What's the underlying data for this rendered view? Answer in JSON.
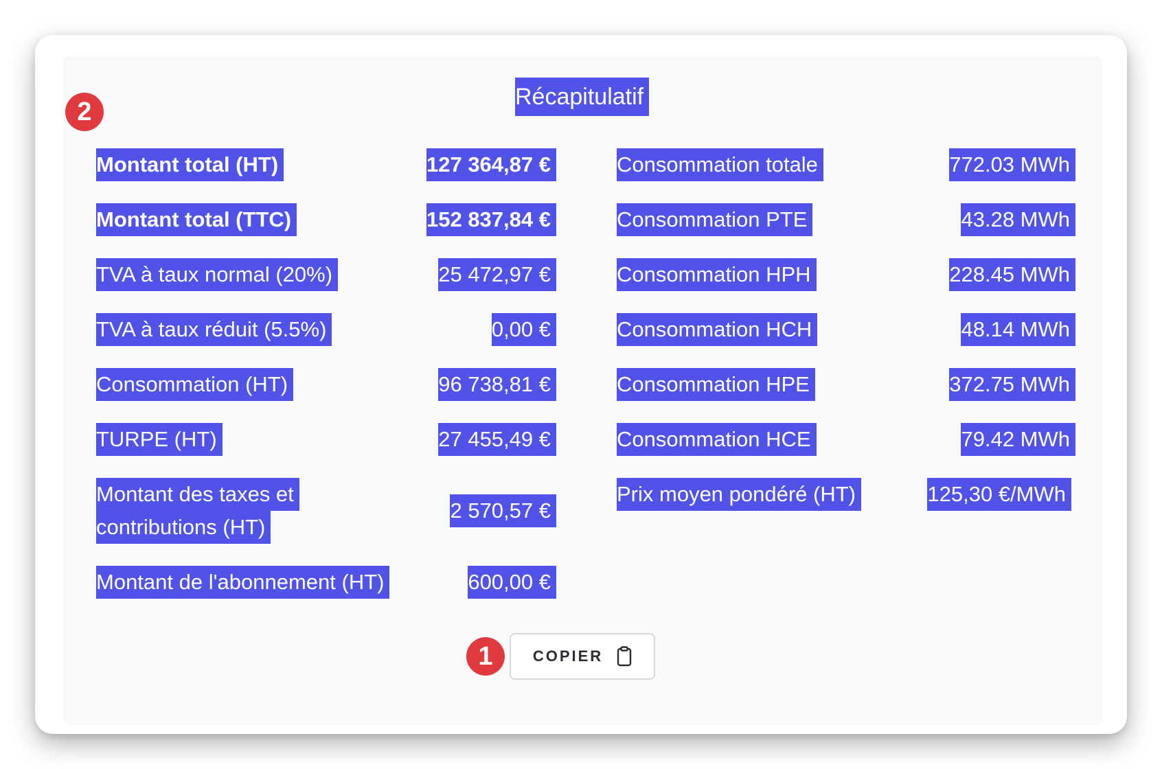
{
  "title": "Récapitulatif",
  "badges": {
    "one": "1",
    "two": "2"
  },
  "left_rows": [
    {
      "label": "Montant total (HT)",
      "value": "127 364,87 €"
    },
    {
      "label": "Montant total (TTC)",
      "value": "152 837,84 €"
    },
    {
      "label": "TVA à taux normal (20%)",
      "value": "25 472,97 €"
    },
    {
      "label": "TVA à taux réduit (5.5%)",
      "value": "0,00 €"
    },
    {
      "label": "Consommation (HT)",
      "value": "96 738,81 €"
    },
    {
      "label": "TURPE (HT)",
      "value": "27 455,49 €"
    },
    {
      "label_line1": "Montant des taxes et",
      "label_line2": "contributions (HT)",
      "value": "2 570,57 €"
    },
    {
      "label": "Montant de l'abonnement (HT)",
      "value": "600,00 €"
    }
  ],
  "right_rows": [
    {
      "label": "Consommation totale",
      "value": "772.03 MWh"
    },
    {
      "label": "Consommation PTE",
      "value": "43.28 MWh"
    },
    {
      "label": "Consommation HPH",
      "value": "228.45 MWh"
    },
    {
      "label": "Consommation HCH",
      "value": "48.14 MWh"
    },
    {
      "label": "Consommation HPE",
      "value": "372.75 MWh"
    },
    {
      "label": "Consommation HCE",
      "value": "79.42 MWh"
    },
    {
      "label": "Prix moyen pondéré (HT)",
      "value": "125,30 €/MWh"
    }
  ],
  "copy_button": {
    "label": "COPIER",
    "icon": "clipboard-icon"
  },
  "colors": {
    "highlight": "#5152e8",
    "badge": "#e0393e"
  }
}
